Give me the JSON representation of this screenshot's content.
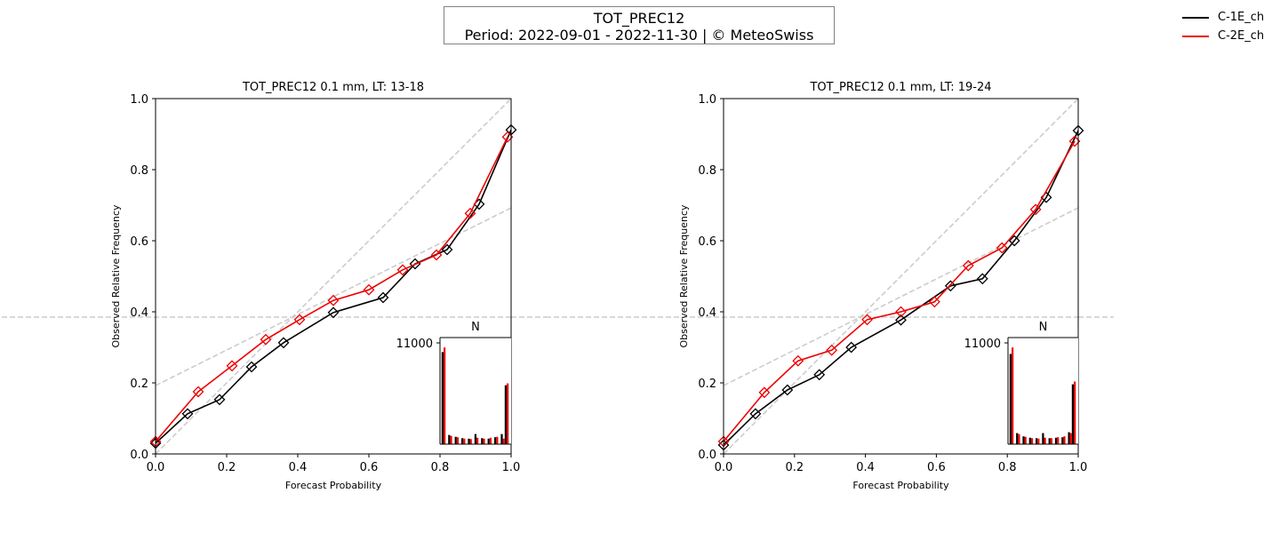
{
  "suptitle": {
    "line1": "TOT_PREC12",
    "line2": "Period: 2022-09-01 - 2022-11-30 | © MeteoSwiss"
  },
  "legend": [
    {
      "name": "C-1E_ch",
      "color": "#000000"
    },
    {
      "name": "C-2E_ch",
      "color": "#ee0000"
    }
  ],
  "chart_data": [
    {
      "type": "line",
      "title": "TOT_PREC12 0.1 mm, LT: 13-18",
      "xlabel": "Forecast Probability",
      "ylabel": "Observed Relative Frequency",
      "xlim": [
        0,
        1
      ],
      "ylim": [
        0,
        1
      ],
      "xticks": [
        "0.0",
        "0.2",
        "0.4",
        "0.6",
        "0.8",
        "1.0"
      ],
      "yticks": [
        "0.0",
        "0.2",
        "0.4",
        "0.6",
        "0.8",
        "1.0"
      ],
      "grid": false,
      "marker": "diamond",
      "reference_lines": {
        "climatology": 0.385,
        "diagonal": true,
        "no_skill": true
      },
      "series": [
        {
          "name": "C-1E_ch",
          "color": "#000000",
          "x": [
            0.0,
            0.09,
            0.18,
            0.27,
            0.36,
            0.5,
            0.64,
            0.73,
            0.82,
            0.91,
            1.0
          ],
          "y": [
            0.03,
            0.113,
            0.153,
            0.245,
            0.313,
            0.398,
            0.44,
            0.535,
            0.575,
            0.703,
            0.912
          ]
        },
        {
          "name": "C-2E_ch",
          "color": "#ee0000",
          "x": [
            0.0,
            0.12,
            0.215,
            0.31,
            0.405,
            0.5,
            0.6,
            0.695,
            0.79,
            0.885,
            0.99
          ],
          "y": [
            0.035,
            0.175,
            0.248,
            0.322,
            0.378,
            0.432,
            0.462,
            0.518,
            0.56,
            0.677,
            0.892
          ]
        }
      ],
      "inset": {
        "type": "bar",
        "title": "N",
        "ytick": "11000",
        "ymax": 11000,
        "series": [
          {
            "name": "C-1E_ch",
            "color": "#000000",
            "values": [
              10000,
              1000,
              800,
              650,
              600,
              1100,
              650,
              600,
              750,
              1100,
              6400
            ]
          },
          {
            "name": "C-2E_ch",
            "color": "#ee0000",
            "values": [
              10500,
              900,
              750,
              600,
              550,
              700,
              600,
              700,
              800,
              600,
              6600
            ]
          }
        ]
      }
    },
    {
      "type": "line",
      "title": "TOT_PREC12 0.1 mm, LT: 19-24",
      "xlabel": "Forecast Probability",
      "ylabel": "Observed Relative Frequency",
      "xlim": [
        0,
        1
      ],
      "ylim": [
        0,
        1
      ],
      "xticks": [
        "0.0",
        "0.2",
        "0.4",
        "0.6",
        "0.8",
        "1.0"
      ],
      "yticks": [
        "0.0",
        "0.2",
        "0.4",
        "0.6",
        "0.8",
        "1.0"
      ],
      "grid": false,
      "marker": "diamond",
      "reference_lines": {
        "climatology": 0.385,
        "diagonal": true,
        "no_skill": true
      },
      "series": [
        {
          "name": "C-1E_ch",
          "color": "#000000",
          "x": [
            0.0,
            0.09,
            0.18,
            0.27,
            0.36,
            0.5,
            0.64,
            0.73,
            0.82,
            0.91,
            1.0
          ],
          "y": [
            0.025,
            0.113,
            0.18,
            0.223,
            0.3,
            0.377,
            0.473,
            0.493,
            0.6,
            0.722,
            0.91
          ]
        },
        {
          "name": "C-2E_ch",
          "color": "#ee0000",
          "x": [
            0.0,
            0.115,
            0.21,
            0.305,
            0.405,
            0.5,
            0.595,
            0.69,
            0.785,
            0.88,
            0.99
          ],
          "y": [
            0.035,
            0.173,
            0.262,
            0.292,
            0.378,
            0.4,
            0.428,
            0.53,
            0.58,
            0.688,
            0.88
          ]
        }
      ],
      "inset": {
        "type": "bar",
        "title": "N",
        "ytick": "11000",
        "ymax": 11000,
        "series": [
          {
            "name": "C-1E_ch",
            "color": "#000000",
            "values": [
              9800,
              1200,
              850,
              700,
              650,
              1200,
              650,
              700,
              750,
              1300,
              6500
            ]
          },
          {
            "name": "C-2E_ch",
            "color": "#ee0000",
            "values": [
              10500,
              1100,
              800,
              650,
              600,
              700,
              650,
              750,
              850,
              1200,
              6800
            ]
          }
        ]
      }
    }
  ]
}
